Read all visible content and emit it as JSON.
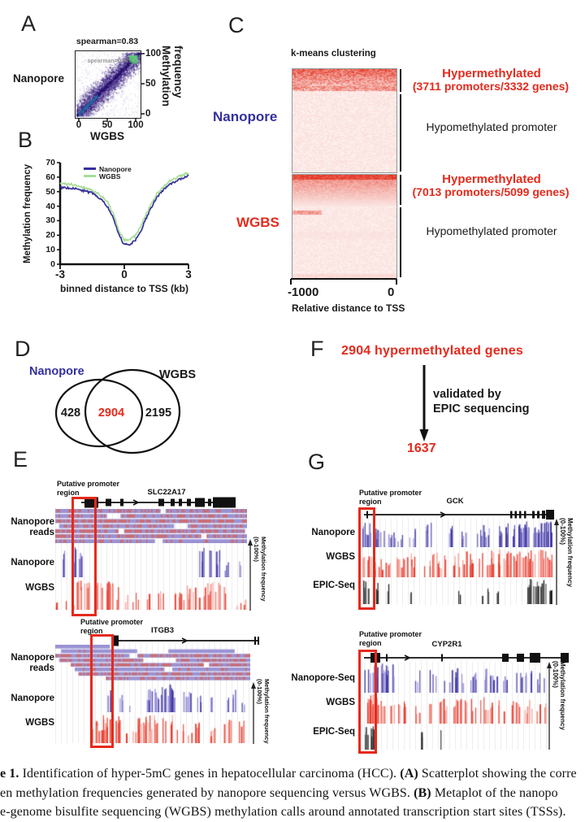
{
  "colors": {
    "navy": "#34309e",
    "red": "#e52a1c",
    "track_blue_dark": "#3d33a3",
    "track_blue_light": "#8e87d2",
    "track_red_dark": "#e8392b",
    "track_red_light": "#f2968c",
    "track_black": "#141414",
    "reads_blue": "#9a93d4",
    "reads_red_speckle": "#dc5f52",
    "heatmap_red": "#e22c1a",
    "metaplot_green": "#a6dd96",
    "scatter_purple": "#34197d",
    "scatter_green": "#3cc285"
  },
  "panels": {
    "A": {
      "letter": "A",
      "title": "spearman=0.83",
      "inner_annotation": "spearman=0.83",
      "left_label": "Nanopore",
      "ylabel_line1": "Methylation",
      "ylabel_line2": "frequency",
      "y_ticks": [
        "100",
        "50",
        "0"
      ],
      "x_ticks": [
        "0",
        "50",
        "100"
      ],
      "xlabel": "WGBS"
    },
    "B": {
      "letter": "B",
      "ylabel": "Methylation frequency",
      "y_ticks": [
        "70",
        "60",
        "50",
        "40",
        "30",
        "20",
        "10",
        "0"
      ],
      "x_ticks": [
        "-3",
        "0",
        "3"
      ],
      "xlabel": "binned distance to TSS (kb)",
      "legend": [
        "Nanopore",
        "WGBS"
      ]
    },
    "C": {
      "letter": "C",
      "title": "k-means clustering",
      "rows": [
        {
          "name": "Nanopore",
          "hyper_title": "Hypermethylated",
          "hyper_detail": "(3711 promoters/3332 genes)",
          "hypo_label": "Hypomethylated promoter"
        },
        {
          "name": "WGBS",
          "hyper_title": "Hypermethylated",
          "hyper_detail": "(7013 promoters/5099 genes)",
          "hypo_label": "Hypomethylated promoter"
        }
      ],
      "x_ticks": [
        "-1000",
        "0"
      ],
      "xlabel": "Relative distance to TSS"
    },
    "D": {
      "letter": "D",
      "left_set": "Nanopore",
      "right_set": "WGBS",
      "left_value": "428",
      "overlap_value": "2904",
      "right_value": "2195"
    },
    "E": {
      "letter": "E",
      "subpanels": [
        {
          "promoter_line1": "Putative promoter",
          "promoter_line2": "region",
          "gene": "SLC22A17",
          "reads_label_line1": "Nanopore",
          "reads_label_line2": "reads",
          "track2_label": "Nanopore",
          "track3_label": "WGBS",
          "axis_label": "Methylation frequency",
          "axis_sub": "(0-100%)"
        },
        {
          "promoter_line1": "Putative promoter",
          "promoter_line2": "region",
          "gene": "ITGB3",
          "reads_label_line1": "Nanopore",
          "reads_label_line2": "reads",
          "track2_label": "Nanopore",
          "track3_label": "WGBS",
          "axis_label": "Methylation frequency",
          "axis_sub": "(0-100%)"
        }
      ]
    },
    "F": {
      "letter": "F",
      "top_text": "2904 hypermethylated genes",
      "arrow_line1": "validated by",
      "arrow_line2": "EPIC sequencing",
      "result": "1637"
    },
    "G": {
      "letter": "G",
      "subpanels": [
        {
          "promoter_line1": "Putative promoter",
          "promoter_line2": "region",
          "gene": "GCK",
          "track1_label": "Nanopore",
          "track2_label": "WGBS",
          "track3_label": "EPIC-Seq",
          "axis_label": "Methylation frequency",
          "axis_sub": "(0-100%)"
        },
        {
          "promoter_line1": "Putative promoter",
          "promoter_line2": "region",
          "gene": "CYP2R1",
          "track1_label": "Nanopore-Seq",
          "track2_label": "WGBS",
          "track3_label": "EPIC-Seq",
          "axis_label": "Methylation frequency",
          "axis_sub": "(0-100%)"
        }
      ]
    }
  },
  "caption": {
    "lines": [
      [
        {
          "t": "e 1.",
          "b": true
        },
        {
          "t": " Identification of hyper-5mC genes in hepatocellular carcinoma (HCC). ",
          "b": false
        },
        {
          "t": "(A)",
          "b": true
        },
        {
          "t": " Scatterplot showing the corre",
          "b": false
        }
      ],
      [
        {
          "t": "en methylation frequencies generated by nanopore sequencing versus WGBS. ",
          "b": false
        },
        {
          "t": "(B)",
          "b": true
        },
        {
          "t": " Metaplot of the nanopo",
          "b": false
        }
      ],
      [
        {
          "t": "e-genome bisulfite sequencing (WGBS) methylation calls around annotated transcription start sites (TSSs).",
          "b": false
        }
      ]
    ]
  },
  "chart_data": [
    {
      "id": "A",
      "type": "scatter",
      "annotation": "spearman=0.83",
      "spearman": 0.83,
      "xlabel": "WGBS",
      "ylabel": "Methylation frequency",
      "xlim": [
        0,
        100
      ],
      "ylim": [
        0,
        100
      ],
      "x_ticks": [
        0,
        50,
        100
      ],
      "y_ticks": [
        0,
        50,
        100
      ],
      "description": "density scatterplot of per-site methylation frequency, nanopore vs WGBS; dense dark-purple diagonal cloud with bright green density hotspots near (0,0) and (100,100)"
    },
    {
      "id": "B",
      "type": "line",
      "xlabel": "binned distance to TSS (kb)",
      "ylabel": "Methylation frequency",
      "xlim": [
        -3,
        3
      ],
      "ylim": [
        0,
        70
      ],
      "grid": false,
      "legend_position": "top-left",
      "x": [
        -3,
        -2.5,
        -2,
        -1.5,
        -1,
        -0.75,
        -0.5,
        -0.25,
        0,
        0.25,
        0.5,
        0.75,
        1,
        1.5,
        2,
        2.5,
        3
      ],
      "series": [
        {
          "name": "Nanopore",
          "color": "#36309b",
          "values": [
            53,
            52.5,
            51,
            49,
            44,
            39,
            31,
            20,
            13.5,
            14,
            16,
            22,
            31,
            46,
            54,
            58,
            61
          ]
        },
        {
          "name": "WGBS",
          "color": "#a6dd96",
          "values": [
            55.5,
            55,
            53.5,
            51,
            46.5,
            42,
            34,
            23,
            16.5,
            17,
            19.5,
            25.5,
            34,
            48,
            56,
            60,
            63
          ]
        }
      ]
    },
    {
      "id": "C",
      "type": "heatmap",
      "title": "k-means clustering",
      "xlabel": "Relative distance to TSS",
      "x_ticks": [
        -1000,
        0
      ],
      "colormap": "white-to-red",
      "rows": [
        {
          "dataset": "Nanopore",
          "hyper_fraction_est": 0.21,
          "clusters": [
            {
              "label": "Hypermethylated",
              "detail": "(3711 promoters/3332 genes)",
              "promoters": 3711,
              "genes": 3332
            },
            {
              "label": "Hypomethylated promoter"
            }
          ]
        },
        {
          "dataset": "WGBS",
          "hyper_fraction_est": 0.3,
          "clusters": [
            {
              "label": "Hypermethylated",
              "detail": "(7013 promoters/5099 genes)",
              "promoters": 7013,
              "genes": 5099
            },
            {
              "label": "Hypomethylated promoter"
            }
          ]
        }
      ]
    },
    {
      "id": "D",
      "type": "venn",
      "sets": [
        "Nanopore",
        "WGBS"
      ],
      "nanopore_only": 428,
      "overlap": 2904,
      "wgbs_only": 2195
    },
    {
      "id": "F",
      "type": "flow",
      "start": "2904 hypermethylated genes",
      "step": "validated by EPIC sequencing",
      "end": "1637"
    },
    {
      "id": "E",
      "type": "genome-browser",
      "genes": [
        "SLC22A17",
        "ITGB3"
      ],
      "tracks": [
        "Nanopore reads",
        "Nanopore",
        "WGBS"
      ],
      "y_axis": "Methylation frequency (0-100%)",
      "highlight": "Putative promoter region"
    },
    {
      "id": "G",
      "type": "genome-browser",
      "genes": [
        "GCK",
        "CYP2R1"
      ],
      "tracks_gck": [
        "Nanopore",
        "WGBS",
        "EPIC-Seq"
      ],
      "tracks_cyp2r1": [
        "Nanopore-Seq",
        "WGBS",
        "EPIC-Seq"
      ],
      "y_axis": "Methylation frequency (0-100%)",
      "highlight": "Putative promoter region"
    }
  ]
}
